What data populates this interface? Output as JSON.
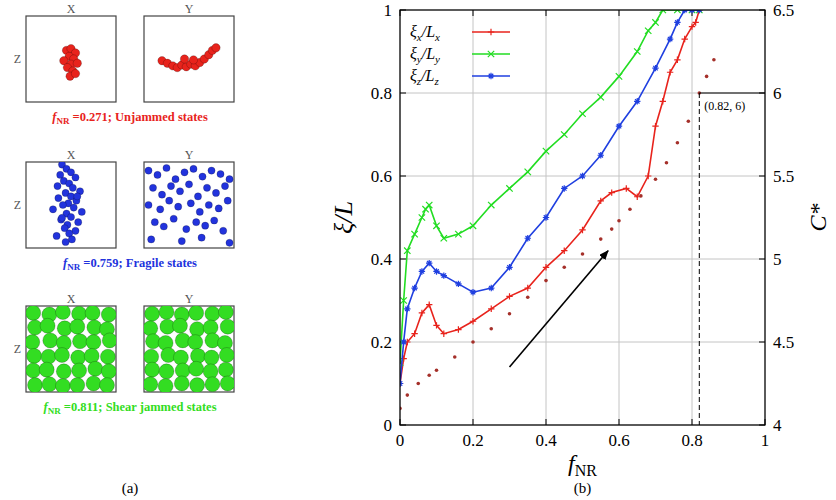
{
  "chart_data": [
    {
      "type": "scatter",
      "panel_label": "(a)",
      "xlim": [
        0,
        1
      ],
      "ylim": [
        0,
        1
      ],
      "tick_labels": false,
      "rows": [
        {
          "color": "#e8231c",
          "caption_symbol": "f",
          "caption_subscript": "NR",
          "caption": " =0.271; Unjammed states",
          "views": [
            {
              "title": "X",
              "ylabel": "Z",
              "x": [
                0.45,
                0.5,
                0.55,
                0.48,
                0.53,
                0.42,
                0.5,
                0.57,
                0.46,
                0.52,
                0.49,
                0.55
              ],
              "values": [
                0.6,
                0.62,
                0.57,
                0.53,
                0.5,
                0.48,
                0.44,
                0.45,
                0.4,
                0.36,
                0.3,
                0.33
              ]
            },
            {
              "title": "Y",
              "x": [
                0.2,
                0.26,
                0.32,
                0.37,
                0.42,
                0.47,
                0.52,
                0.57,
                0.62,
                0.67,
                0.72,
                0.76,
                0.8,
                0.45,
                0.55
              ],
              "values": [
                0.48,
                0.45,
                0.42,
                0.4,
                0.43,
                0.41,
                0.44,
                0.42,
                0.46,
                0.5,
                0.55,
                0.6,
                0.63,
                0.5,
                0.49
              ]
            }
          ]
        },
        {
          "color": "#2233dd",
          "caption_symbol": "f",
          "caption_subscript": "NR",
          "caption": " =0.759; Fragile states",
          "views": [
            {
              "title": "X",
              "ylabel": "Z",
              "x": [
                0.4,
                0.45,
                0.5,
                0.38,
                0.55,
                0.42,
                0.48,
                0.35,
                0.52,
                0.6,
                0.44,
                0.5,
                0.36,
                0.56,
                0.47,
                0.41,
                0.53,
                0.3,
                0.62,
                0.45,
                0.5,
                0.39,
                0.58,
                0.46,
                0.43,
                0.55,
                0.48,
                0.34,
                0.51,
                0.44,
                0.57,
                0.4
              ],
              "values": [
                0.97,
                0.92,
                0.88,
                0.85,
                0.82,
                0.78,
                0.75,
                0.72,
                0.7,
                0.66,
                0.64,
                0.6,
                0.58,
                0.55,
                0.52,
                0.5,
                0.47,
                0.45,
                0.42,
                0.4,
                0.36,
                0.33,
                0.3,
                0.27,
                0.23,
                0.2,
                0.17,
                0.14,
                0.1,
                0.07,
                0.6,
                0.35
              ]
            },
            {
              "title": "Y",
              "x": [
                0.05,
                0.15,
                0.25,
                0.35,
                0.45,
                0.55,
                0.65,
                0.75,
                0.85,
                0.95,
                0.1,
                0.2,
                0.3,
                0.4,
                0.5,
                0.6,
                0.7,
                0.8,
                0.9,
                0.05,
                0.18,
                0.28,
                0.38,
                0.52,
                0.62,
                0.72,
                0.83,
                0.93,
                0.12,
                0.22,
                0.33,
                0.47,
                0.58,
                0.68,
                0.78,
                0.88,
                0.08,
                0.42,
                0.64,
                0.95
              ],
              "values": [
                0.9,
                0.85,
                0.93,
                0.8,
                0.88,
                0.92,
                0.83,
                0.9,
                0.86,
                0.8,
                0.7,
                0.62,
                0.72,
                0.66,
                0.74,
                0.6,
                0.7,
                0.64,
                0.72,
                0.5,
                0.45,
                0.55,
                0.48,
                0.52,
                0.42,
                0.5,
                0.46,
                0.55,
                0.3,
                0.25,
                0.34,
                0.22,
                0.3,
                0.26,
                0.32,
                0.2,
                0.1,
                0.08,
                0.12,
                0.06
              ]
            }
          ]
        },
        {
          "color": "#33dd22",
          "caption_symbol": "f",
          "caption_subscript": "NR",
          "caption": " =0.811; Shear jammed states",
          "views": [
            {
              "title": "X",
              "ylabel": "Z",
              "x": [
                0.08,
                0.26,
                0.41,
                0.59,
                0.74,
                0.92,
                0.1,
                0.24,
                0.43,
                0.57,
                0.76,
                0.9,
                0.07,
                0.27,
                0.42,
                0.6,
                0.75,
                0.93,
                0.09,
                0.25,
                0.4,
                0.58,
                0.73,
                0.91,
                0.08,
                0.23,
                0.42,
                0.59,
                0.77,
                0.92,
                0.1,
                0.26,
                0.41,
                0.57,
                0.75,
                0.9
              ],
              "values": [
                0.92,
                0.9,
                0.93,
                0.91,
                0.92,
                0.9,
                0.75,
                0.77,
                0.74,
                0.76,
                0.75,
                0.73,
                0.58,
                0.6,
                0.57,
                0.59,
                0.58,
                0.6,
                0.42,
                0.41,
                0.43,
                0.4,
                0.42,
                0.41,
                0.25,
                0.26,
                0.24,
                0.25,
                0.27,
                0.24,
                0.08,
                0.09,
                0.07,
                0.08,
                0.1,
                0.08
              ]
            },
            {
              "title": "Y",
              "x": [
                0.09,
                0.25,
                0.42,
                0.58,
                0.76,
                0.91,
                0.07,
                0.26,
                0.4,
                0.59,
                0.74,
                0.93,
                0.1,
                0.24,
                0.43,
                0.57,
                0.76,
                0.9,
                0.08,
                0.27,
                0.41,
                0.6,
                0.75,
                0.92,
                0.09,
                0.25,
                0.43,
                0.58,
                0.74,
                0.91,
                0.07,
                0.24,
                0.42,
                0.59,
                0.76,
                0.93
              ],
              "values": [
                0.91,
                0.93,
                0.9,
                0.92,
                0.91,
                0.93,
                0.74,
                0.76,
                0.77,
                0.73,
                0.75,
                0.76,
                0.59,
                0.57,
                0.6,
                0.58,
                0.6,
                0.57,
                0.41,
                0.43,
                0.4,
                0.42,
                0.4,
                0.43,
                0.26,
                0.24,
                0.25,
                0.27,
                0.24,
                0.26,
                0.09,
                0.07,
                0.1,
                0.08,
                0.09,
                0.1
              ]
            }
          ]
        }
      ]
    },
    {
      "type": "line",
      "panel_label": "(b)",
      "xlabel": "f",
      "xlabel_subscript": "NR",
      "ylabel": "ξ/L",
      "y2label": "C*",
      "xlim": [
        0,
        1
      ],
      "xticks": [
        0,
        0.2,
        0.4,
        0.6,
        0.8,
        1
      ],
      "ylim": [
        0,
        1
      ],
      "yticks": [
        0,
        0.2,
        0.4,
        0.6,
        0.8,
        1
      ],
      "y2lim": [
        4,
        6.5
      ],
      "y2ticks": [
        4,
        4.5,
        5,
        5.5,
        6,
        6.5
      ],
      "grid": true,
      "legend": "top-left",
      "series": [
        {
          "name": "ξx/Lx",
          "color": "#e8231c",
          "marker": "plus",
          "x": [
            0,
            0.01,
            0.02,
            0.04,
            0.06,
            0.08,
            0.1,
            0.12,
            0.16,
            0.2,
            0.25,
            0.3,
            0.35,
            0.4,
            0.45,
            0.5,
            0.55,
            0.58,
            0.62,
            0.65,
            0.68,
            0.7,
            0.72,
            0.74,
            0.76,
            0.78,
            0.8,
            0.81,
            0.82
          ],
          "values": [
            0.1,
            0.16,
            0.2,
            0.22,
            0.27,
            0.29,
            0.24,
            0.22,
            0.23,
            0.25,
            0.28,
            0.31,
            0.33,
            0.38,
            0.42,
            0.47,
            0.54,
            0.56,
            0.57,
            0.55,
            0.6,
            0.72,
            0.78,
            0.85,
            0.88,
            0.93,
            0.96,
            0.97,
            1
          ]
        },
        {
          "name": "ξy/Ly",
          "color": "#22dd22",
          "marker": "cross",
          "x": [
            0,
            0.01,
            0.02,
            0.04,
            0.06,
            0.07,
            0.08,
            0.1,
            0.12,
            0.16,
            0.2,
            0.25,
            0.3,
            0.35,
            0.4,
            0.45,
            0.5,
            0.55,
            0.6,
            0.65,
            0.68,
            0.7,
            0.72,
            0.76,
            0.8,
            0.82
          ],
          "values": [
            0.15,
            0.3,
            0.42,
            0.46,
            0.5,
            0.52,
            0.53,
            0.48,
            0.45,
            0.46,
            0.48,
            0.53,
            0.57,
            0.61,
            0.66,
            0.7,
            0.75,
            0.79,
            0.84,
            0.9,
            0.95,
            0.97,
            1,
            1,
            1,
            1
          ]
        },
        {
          "name": "ξz/Lz",
          "color": "#1f3fe0",
          "marker": "star",
          "x": [
            0,
            0.01,
            0.02,
            0.04,
            0.06,
            0.08,
            0.1,
            0.12,
            0.16,
            0.2,
            0.25,
            0.3,
            0.35,
            0.4,
            0.45,
            0.5,
            0.55,
            0.6,
            0.65,
            0.7,
            0.74,
            0.76,
            0.78,
            0.8,
            0.82
          ],
          "values": [
            0.1,
            0.2,
            0.28,
            0.33,
            0.37,
            0.39,
            0.37,
            0.36,
            0.34,
            0.32,
            0.33,
            0.38,
            0.45,
            0.5,
            0.57,
            0.6,
            0.65,
            0.72,
            0.78,
            0.86,
            0.93,
            0.97,
            1,
            1,
            1
          ]
        },
        {
          "type": "scatter",
          "axis": "y2",
          "color": "#a5302a",
          "marker": "dot",
          "x": [
            0,
            0.02,
            0.05,
            0.08,
            0.1,
            0.15,
            0.2,
            0.25,
            0.3,
            0.35,
            0.4,
            0.45,
            0.5,
            0.55,
            0.58,
            0.6,
            0.63,
            0.66,
            0.7,
            0.73,
            0.76,
            0.79,
            0.82,
            0.84,
            0.86
          ],
          "values": [
            4.1,
            4.18,
            4.25,
            4.3,
            4.33,
            4.41,
            4.5,
            4.58,
            4.67,
            4.77,
            4.87,
            4.95,
            5.03,
            5.12,
            5.18,
            5.23,
            5.3,
            5.38,
            5.48,
            5.58,
            5.7,
            5.83,
            6.0,
            6.1,
            6.2
          ]
        }
      ],
      "annotations": [
        {
          "text": "(0.82, 6)",
          "x": 0.82,
          "y": 6,
          "axis": "y2"
        }
      ],
      "arrows": [
        {
          "x": [
            0.3,
            0.57
          ],
          "y": [
            0.14,
            0.42
          ]
        }
      ]
    }
  ]
}
